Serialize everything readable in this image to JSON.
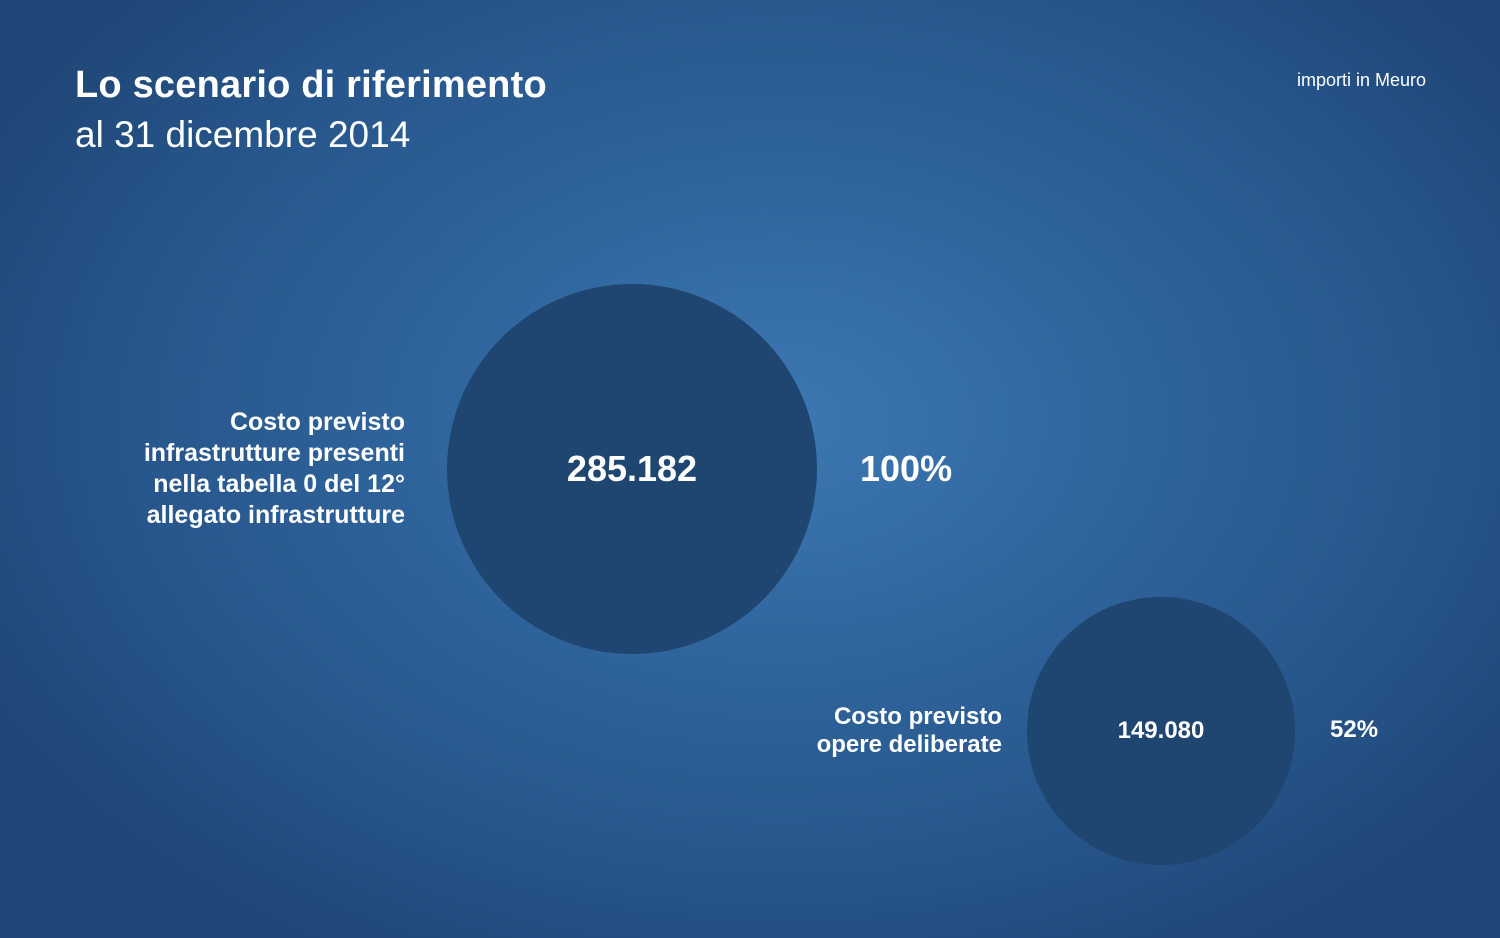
{
  "header": {
    "title": "Lo scenario di riferimento",
    "subtitle": "al 31 dicembre 2014",
    "units_note": "importi in Meuro"
  },
  "colors": {
    "background_center": "#3d78b2",
    "background_edge": "#1f4676",
    "bubble": "#1e4670",
    "text": "#ffffff"
  },
  "chart_data": {
    "type": "bubble",
    "title": "Lo scenario di riferimento",
    "subtitle": "al 31 dicembre 2014",
    "unit": "importi in Meuro",
    "items": [
      {
        "label_lines": [
          "Costo previsto",
          "infrastrutture presenti",
          "nella tabella 0 del 12°",
          "allegato infrastrutture"
        ],
        "value": 285182,
        "value_label": "285.182",
        "percent": 100,
        "percent_label": "100%"
      },
      {
        "label_lines": [
          "Costo previsto",
          "opere deliberate"
        ],
        "value": 149080,
        "value_label": "149.080",
        "percent": 52,
        "percent_label": "52%"
      }
    ]
  }
}
